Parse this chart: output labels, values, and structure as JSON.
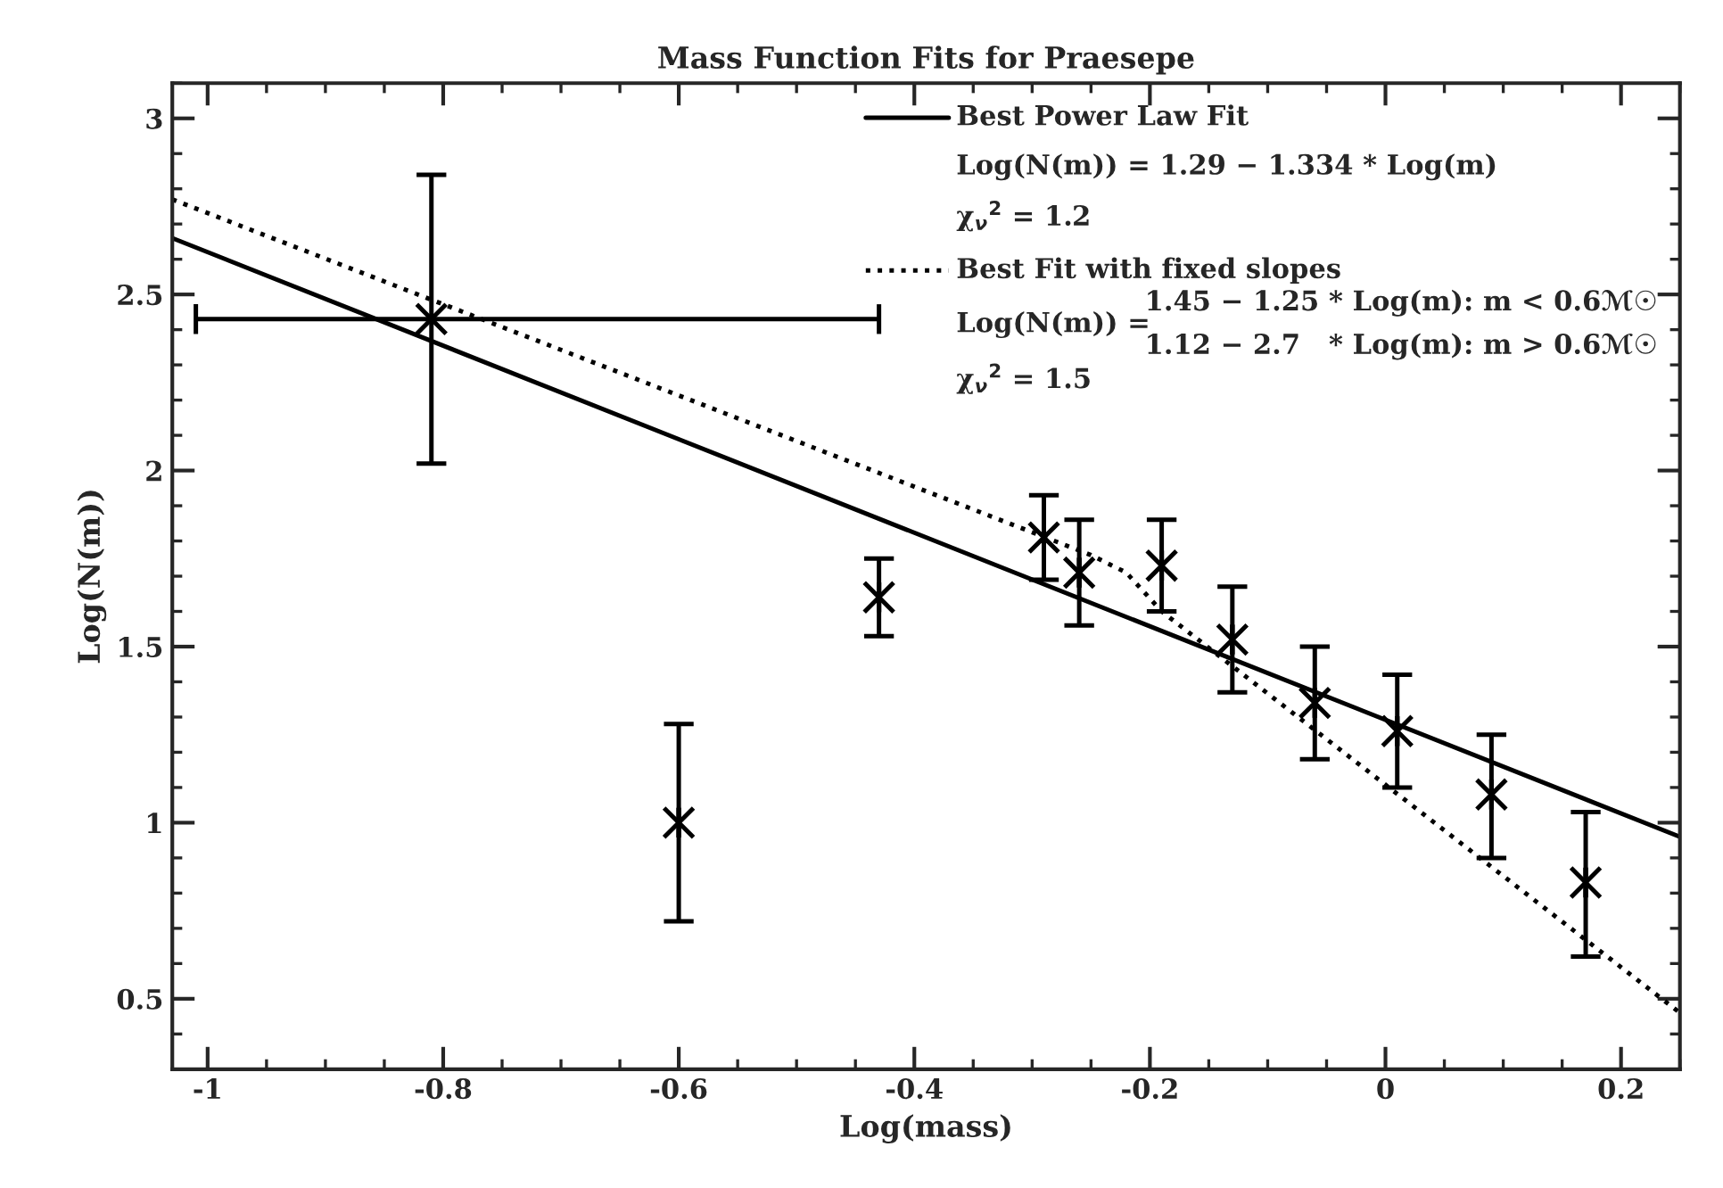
{
  "chart_data": {
    "type": "scatter",
    "title": "Mass Function Fits for Praesepe",
    "xlabel": "Log(mass)",
    "ylabel": "Log(N(m))",
    "x": [
      -0.81,
      -0.6,
      -0.43,
      -0.29,
      -0.26,
      -0.19,
      -0.13,
      -0.06,
      0.01,
      0.09,
      0.17
    ],
    "series": [
      {
        "type": "line",
        "name": "Best Power Law Fit",
        "color": "#000000",
        "line_style": "solid",
        "x": [
          -1.03,
          0.25
        ],
        "values": [
          2.66,
          0.96
        ]
      },
      {
        "type": "line",
        "name": "Best Fit with fixed slopes",
        "color": "#000000",
        "line_style": "dotted",
        "x": [
          -1.03,
          -0.25,
          -0.22,
          -0.19,
          0.25
        ],
        "values": [
          2.77,
          1.76,
          1.71,
          1.6,
          0.46
        ]
      },
      {
        "color": "#000000",
        "marker": "cross",
        "values": [
          2.43,
          1.0,
          1.64,
          1.81,
          1.71,
          1.73,
          1.52,
          1.34,
          1.26,
          1.08,
          0.83
        ],
        "errors": [
          [
            2.02,
            2.84
          ],
          [
            0.72,
            1.28
          ],
          [
            1.53,
            1.75
          ],
          [
            1.69,
            1.93
          ],
          [
            1.56,
            1.86
          ],
          [
            1.6,
            1.86
          ],
          [
            1.37,
            1.67
          ],
          [
            1.18,
            1.5
          ],
          [
            1.1,
            1.42
          ],
          [
            0.9,
            1.25
          ],
          [
            0.62,
            1.03
          ]
        ],
        "xerrors": [
          [
            -1.01,
            -0.43
          ],
          null,
          null,
          null,
          null,
          null,
          null,
          null,
          null,
          null,
          null
        ]
      }
    ],
    "annotations": [
      "Log(N(m)) = 1.29 − 1.334 * Log(m)",
      "χ$_{ν}$$^{2}$ = 1.2",
      "Log(N(m)) =",
      "1.45 − 1.25 * Log(m): m < 0.6ℳ☉",
      "1.12 − 2.7   * Log(m): m > 0.6ℳ☉",
      "χ$_{ν}$$^{2}$ = 1.5"
    ],
    "xlim": [
      -1.03,
      0.25
    ],
    "xticks": [
      -1,
      -0.8,
      -0.6,
      -0.4,
      -0.2,
      0,
      0.2
    ],
    "ylim": [
      0.3,
      3.1
    ],
    "yticks": [
      0.5,
      1,
      1.5,
      2,
      2.5,
      3
    ],
    "legend": "top right",
    "grid": false
  }
}
